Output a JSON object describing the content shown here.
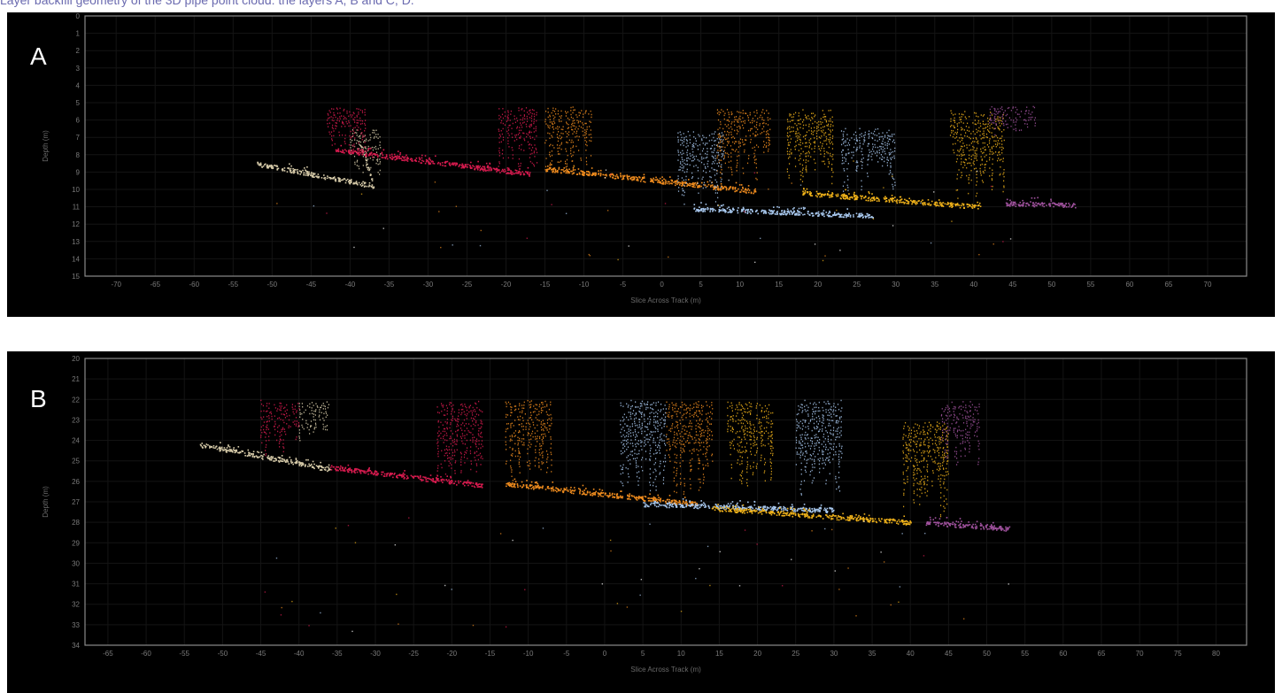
{
  "caption": "Layer backfill geometry of the 3D pipe point cloud: the layers A, B and C, D.",
  "chart_data": [
    {
      "panel": "A",
      "type": "scatter",
      "ylabel": "Depth (m)",
      "xlabel": "Slice Across Track (m)",
      "xlim": [
        -74,
        75
      ],
      "ylim": [
        15,
        0
      ],
      "xticks": [
        -70,
        -65,
        -60,
        -55,
        -50,
        -45,
        -40,
        -35,
        -30,
        -25,
        -20,
        -15,
        -10,
        -5,
        0,
        5,
        10,
        15,
        20,
        25,
        30,
        35,
        40,
        45,
        50,
        55,
        60,
        65,
        70
      ],
      "yticks": [
        0,
        1,
        2,
        3,
        4,
        5,
        6,
        7,
        8,
        9,
        10,
        11,
        12,
        13,
        14,
        15
      ],
      "grid": true,
      "series": [
        {
          "color": "#d8ccaa",
          "segments": [
            [
              [
                -52,
                8.5
              ],
              [
                -37,
                9.8
              ]
            ],
            [
              [
                -39,
                7.0
              ],
              [
                -37,
                9.7
              ]
            ],
            [
              -37,
              9.8
            ]
          ],
          "walls": [
            [
              -40,
              6.5,
              -36,
              9.5
            ]
          ]
        },
        {
          "color": "#d81b4f",
          "segments": [
            [
              [
                -42,
                7.7
              ],
              [
                -17,
                9.1
              ]
            ]
          ],
          "walls": [
            [
              -43,
              5.1,
              -38,
              8.0
            ],
            [
              -21,
              5.2,
              -16,
              9.0
            ]
          ]
        },
        {
          "color": "#f08c1e",
          "segments": [
            [
              [
                -15,
                8.8
              ],
              [
                12,
                10.1
              ]
            ]
          ],
          "walls": [
            [
              -15,
              5.2,
              -9,
              9.0
            ],
            [
              7,
              5.3,
              14,
              9.8
            ]
          ]
        },
        {
          "color": "#a8c8ee",
          "segments": [
            [
              [
                4,
                11.1
              ],
              [
                27,
                11.5
              ]
            ]
          ],
          "walls": [
            [
              2,
              6.6,
              8,
              11.0
            ],
            [
              23,
              6.4,
              30,
              10.4
            ]
          ]
        },
        {
          "color": "#f0b21a",
          "segments": [
            [
              [
                18,
                10.2
              ],
              [
                41,
                11.0
              ]
            ]
          ],
          "walls": [
            [
              16,
              5.3,
              22,
              10.0
            ],
            [
              37,
              5.4,
              44,
              10.8
            ]
          ]
        },
        {
          "color": "#a0529e",
          "segments": [
            [
              [
                44,
                10.8
              ],
              [
                53,
                10.9
              ]
            ]
          ],
          "walls": [
            [
              42,
              5.1,
              48,
              7.0
            ]
          ]
        }
      ]
    },
    {
      "panel": "B",
      "type": "scatter",
      "ylabel": "Depth (m)",
      "xlabel": "Slice Across Track (m)",
      "xlim": [
        -68,
        84
      ],
      "ylim": [
        34,
        20
      ],
      "xticks": [
        -65,
        -60,
        -55,
        -50,
        -45,
        -40,
        -35,
        -30,
        -25,
        -20,
        -15,
        -10,
        -5,
        0,
        5,
        10,
        15,
        20,
        25,
        30,
        35,
        40,
        45,
        50,
        55,
        60,
        65,
        70,
        75,
        80
      ],
      "yticks": [
        20,
        21,
        22,
        23,
        24,
        25,
        26,
        27,
        28,
        29,
        30,
        31,
        32,
        33,
        34
      ],
      "grid": true,
      "series": [
        {
          "color": "#d8ccaa",
          "segments": [
            [
              [
                -53,
                24.2
              ],
              [
                -36,
                25.4
              ]
            ]
          ],
          "walls": [
            [
              -40,
              22.0,
              -36,
              24.5
            ]
          ]
        },
        {
          "color": "#d81b4f",
          "segments": [
            [
              [
                -36,
                25.3
              ],
              [
                -16,
                26.2
              ]
            ]
          ],
          "walls": [
            [
              -45,
              22.0,
              -40,
              25.0
            ],
            [
              -22,
              22.0,
              -16,
              26.0
            ]
          ]
        },
        {
          "color": "#f08c1e",
          "segments": [
            [
              [
                -13,
                26.1
              ],
              [
                12,
                27.1
              ]
            ]
          ],
          "walls": [
            [
              -13,
              22.0,
              -7,
              26.0
            ],
            [
              8,
              22.0,
              14,
              27.0
            ]
          ]
        },
        {
          "color": "#a8c8ee",
          "segments": [
            [
              [
                5,
                27.1
              ],
              [
                30,
                27.4
              ]
            ]
          ],
          "walls": [
            [
              2,
              22.0,
              8,
              26.8
            ],
            [
              25,
              22.0,
              31,
              27.0
            ]
          ]
        },
        {
          "color": "#f0b21a",
          "segments": [
            [
              [
                14,
                27.3
              ],
              [
                40,
                28.0
              ]
            ]
          ],
          "walls": [
            [
              16,
              22.0,
              22,
              26.5
            ],
            [
              39,
              23.0,
              45,
              28.0
            ]
          ]
        },
        {
          "color": "#a0529e",
          "segments": [
            [
              [
                42,
                28.0
              ],
              [
                53,
                28.3
              ]
            ]
          ],
          "walls": [
            [
              44,
              22.0,
              49,
              25.5
            ]
          ]
        }
      ]
    }
  ]
}
